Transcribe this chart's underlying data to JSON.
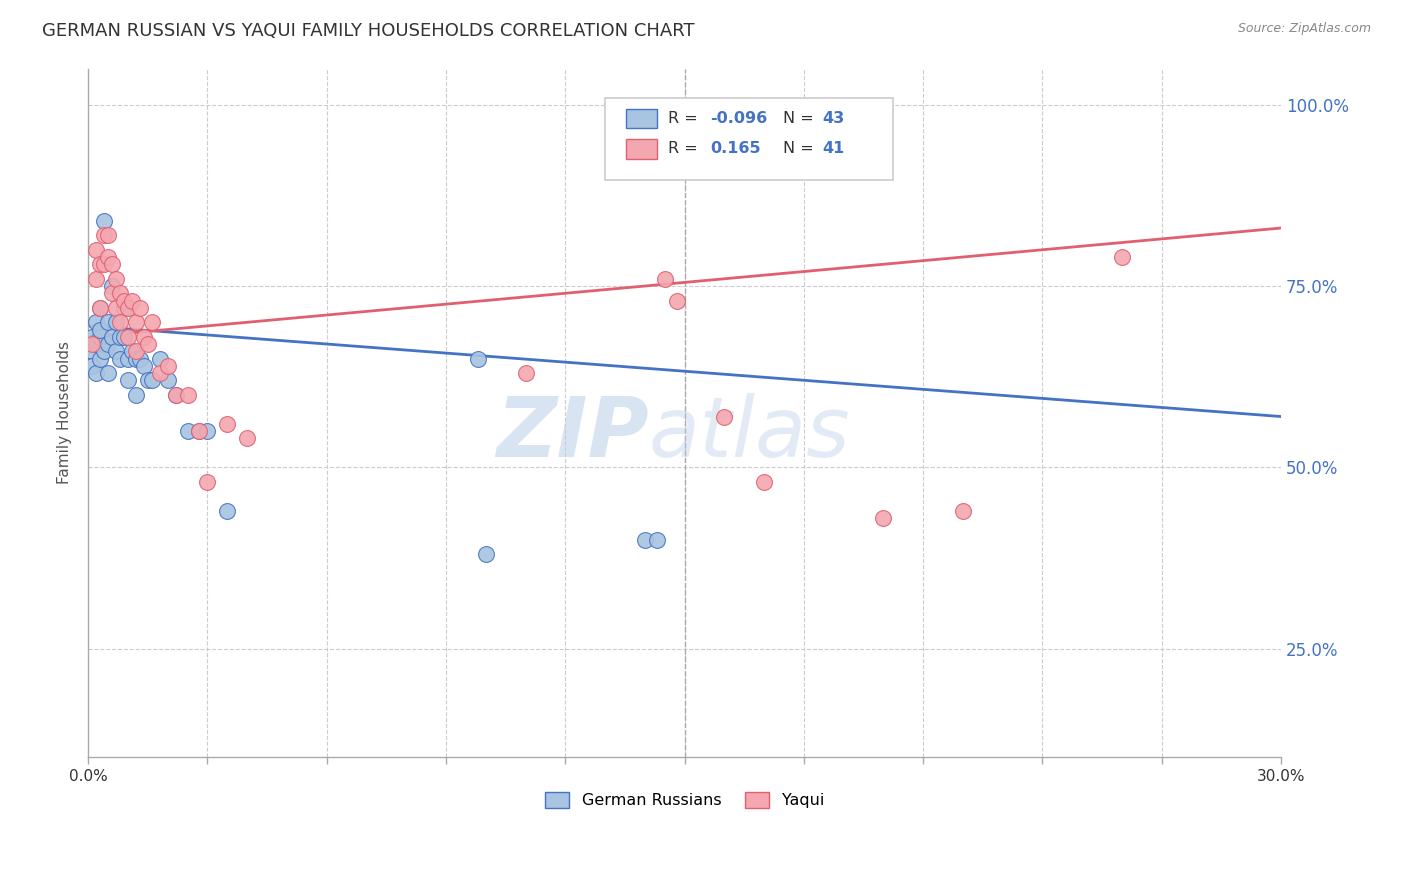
{
  "title": "GERMAN RUSSIAN VS YAQUI FAMILY HOUSEHOLDS CORRELATION CHART",
  "source": "Source: ZipAtlas.com",
  "ylabel": "Family Households",
  "yticks_labels": [
    "100.0%",
    "75.0%",
    "50.0%",
    "25.0%"
  ],
  "ytick_vals": [
    1.0,
    0.75,
    0.5,
    0.25
  ],
  "xmin": 0.0,
  "xmax": 0.3,
  "ymin": 0.1,
  "ymax": 1.05,
  "color_blue": "#a8c4e0",
  "color_pink": "#f4a7b0",
  "line_blue": "#4472c4",
  "line_pink": "#e06070",
  "watermark_zip": "ZIP",
  "watermark_atlas": "atlas",
  "legend_label1": "German Russians",
  "legend_label2": "Yaqui",
  "legend_r1_label": "R = ",
  "legend_r1_val": "-0.096",
  "legend_n1_label": "N = ",
  "legend_n1_val": "43",
  "legend_r2_label": "R =  ",
  "legend_r2_val": "0.165",
  "legend_n2_label": "N = ",
  "legend_n2_val": "41",
  "blue_x": [
    0.001,
    0.001,
    0.001,
    0.002,
    0.002,
    0.002,
    0.003,
    0.003,
    0.003,
    0.003,
    0.004,
    0.004,
    0.005,
    0.005,
    0.005,
    0.006,
    0.006,
    0.007,
    0.007,
    0.008,
    0.008,
    0.009,
    0.009,
    0.01,
    0.01,
    0.011,
    0.012,
    0.012,
    0.013,
    0.014,
    0.015,
    0.016,
    0.018,
    0.02,
    0.022,
    0.025,
    0.028,
    0.03,
    0.035,
    0.098,
    0.1,
    0.14,
    0.143
  ],
  "blue_y": [
    0.68,
    0.66,
    0.64,
    0.7,
    0.67,
    0.63,
    0.68,
    0.65,
    0.72,
    0.69,
    0.84,
    0.66,
    0.7,
    0.67,
    0.63,
    0.68,
    0.75,
    0.66,
    0.7,
    0.68,
    0.65,
    0.72,
    0.68,
    0.65,
    0.62,
    0.66,
    0.65,
    0.6,
    0.65,
    0.64,
    0.62,
    0.62,
    0.65,
    0.62,
    0.6,
    0.55,
    0.55,
    0.55,
    0.44,
    0.65,
    0.38,
    0.4,
    0.4
  ],
  "pink_x": [
    0.001,
    0.002,
    0.002,
    0.003,
    0.003,
    0.004,
    0.004,
    0.005,
    0.005,
    0.006,
    0.006,
    0.007,
    0.007,
    0.008,
    0.008,
    0.009,
    0.01,
    0.01,
    0.011,
    0.012,
    0.012,
    0.013,
    0.014,
    0.015,
    0.016,
    0.018,
    0.02,
    0.022,
    0.025,
    0.028,
    0.03,
    0.035,
    0.04,
    0.11,
    0.145,
    0.148,
    0.16,
    0.17,
    0.2,
    0.22,
    0.26
  ],
  "pink_y": [
    0.67,
    0.8,
    0.76,
    0.78,
    0.72,
    0.82,
    0.78,
    0.82,
    0.79,
    0.78,
    0.74,
    0.76,
    0.72,
    0.74,
    0.7,
    0.73,
    0.72,
    0.68,
    0.73,
    0.7,
    0.66,
    0.72,
    0.68,
    0.67,
    0.7,
    0.63,
    0.64,
    0.6,
    0.6,
    0.55,
    0.48,
    0.56,
    0.54,
    0.63,
    0.76,
    0.73,
    0.57,
    0.48,
    0.43,
    0.44,
    0.79
  ],
  "blue_trend_x": [
    0.0,
    0.3
  ],
  "blue_trend_y": [
    0.695,
    0.57
  ],
  "pink_trend_x": [
    0.0,
    0.3
  ],
  "pink_trend_y": [
    0.68,
    0.83
  ]
}
